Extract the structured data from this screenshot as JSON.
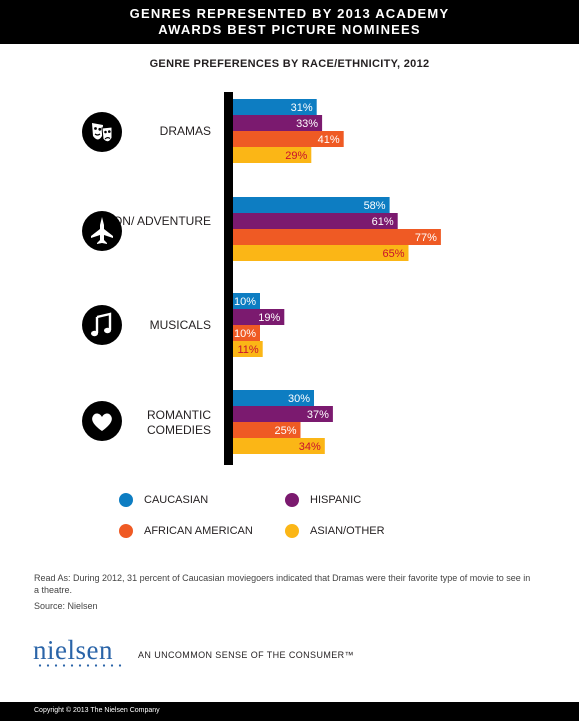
{
  "header": {
    "title_line1": "GENRES REPRESENTED BY 2013 ACADEMY",
    "title_line2": "AWARDS  BEST PICTURE  NOMINEES"
  },
  "chart_data": {
    "type": "bar",
    "orientation": "horizontal",
    "title": "GENRE PREFERENCES BY RACE/ETHNICITY, 2012",
    "categories": [
      "DRAMAS",
      "ACTION/ ADVENTURE",
      "MUSICALS",
      "ROMANTIC COMEDIES"
    ],
    "category_icons": [
      "theater-masks-icon",
      "jet-icon",
      "music-note-icon",
      "heart-icon"
    ],
    "series": [
      {
        "name": "CAUCASIAN",
        "color": "#0d7dc2",
        "values": [
          31,
          58,
          10,
          30
        ]
      },
      {
        "name": "HISPANIC",
        "color": "#7b1a6f",
        "values": [
          33,
          61,
          19,
          37
        ]
      },
      {
        "name": "AFRICAN AMERICAN",
        "color": "#ef5a24",
        "values": [
          41,
          77,
          10,
          25
        ]
      },
      {
        "name": "ASIAN/OTHER",
        "color": "#fbb616",
        "values": [
          29,
          65,
          11,
          34
        ]
      }
    ],
    "value_suffix": "%",
    "xlim": [
      0,
      100
    ],
    "legend_position": "bottom",
    "grid": false
  },
  "notes": {
    "read_as": "Read As: During 2012, 31 percent of Caucasian moviegoers indicated that Dramas were their favorite type of movie to see in a theatre.",
    "source": "Source: Nielsen"
  },
  "branding": {
    "logo": "nielsen",
    "tagline": "AN UNCOMMON SENSE OF THE CONSUMER™",
    "copyright": "Copyright © 2013 The Nielsen Company"
  }
}
